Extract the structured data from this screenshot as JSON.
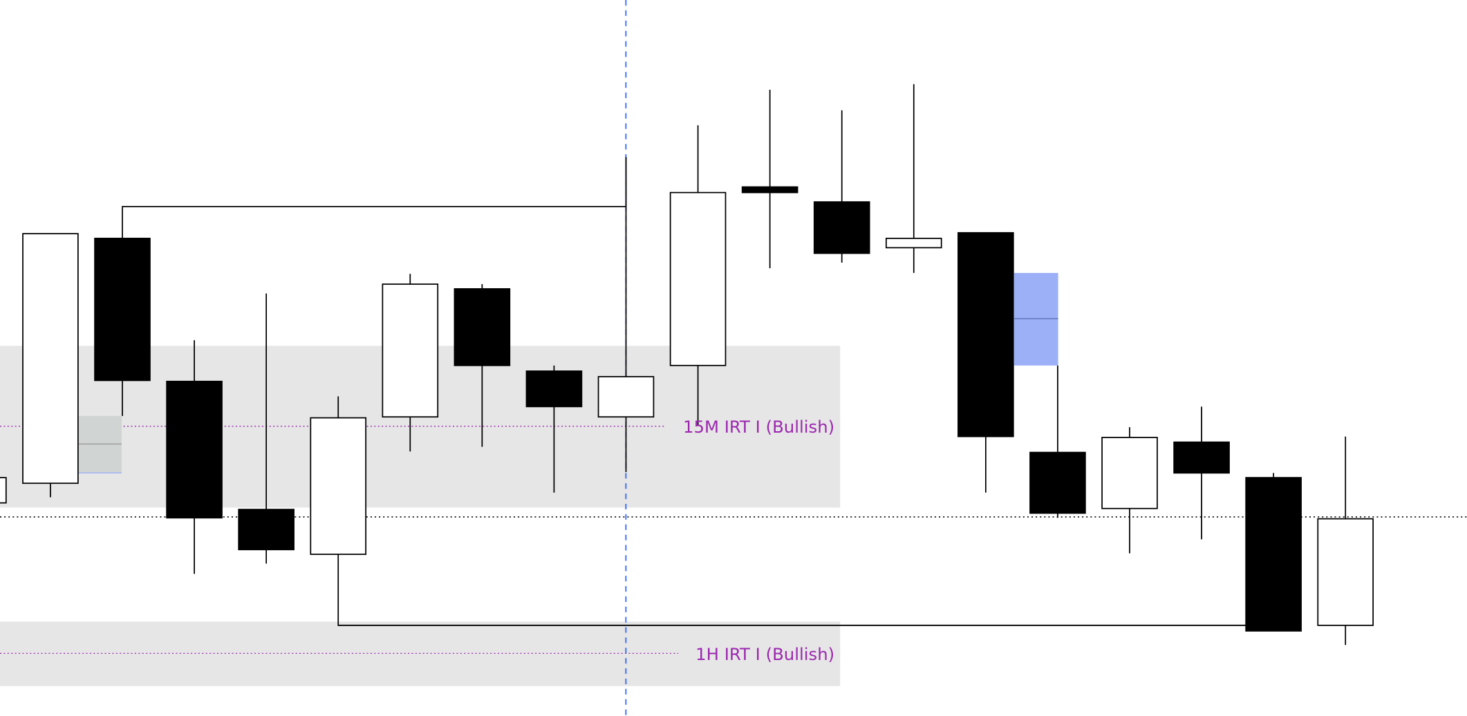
{
  "colors": {
    "zone": "#e6e6e6",
    "zone_label": "#9c27b0",
    "bull_body": "#ffffff",
    "bear_body": "#000000",
    "cursor_line": "#2962ff",
    "fvg_blue": "#9bb0f7",
    "fvg_gray": "#d0d4d2"
  },
  "chart_data": {
    "type": "candlestick",
    "title": "",
    "xlabel": "",
    "ylabel": "",
    "price_units": "relative (no axis printed)",
    "ylim": [
      0,
      800
    ],
    "grid": false,
    "candles": [
      {
        "o": 262,
        "h": 289,
        "l": 262,
        "c": 289
      },
      {
        "o": 283,
        "h": 550,
        "l": 268,
        "c": 550
      },
      {
        "o": 545,
        "h": 578,
        "l": 355,
        "c": 393
      },
      {
        "o": 392,
        "h": 436,
        "l": 186,
        "c": 246
      },
      {
        "o": 255,
        "h": 486,
        "l": 197,
        "c": 212
      },
      {
        "o": 207,
        "h": 376,
        "l": 207,
        "c": 353
      },
      {
        "o": 354,
        "h": 507,
        "l": 317,
        "c": 496
      },
      {
        "o": 491,
        "h": 496,
        "l": 322,
        "c": 409
      },
      {
        "o": 403,
        "h": 409,
        "l": 273,
        "c": 365
      },
      {
        "o": 354,
        "h": 632,
        "l": 295,
        "c": 397
      },
      {
        "o": 409,
        "h": 666,
        "l": 345,
        "c": 594
      },
      {
        "o": 600,
        "h": 704,
        "l": 513,
        "c": 594
      },
      {
        "o": 584,
        "h": 682,
        "l": 519,
        "c": 529
      },
      {
        "o": 535,
        "h": 710,
        "l": 508,
        "c": 545
      },
      {
        "o": 551,
        "h": 551,
        "l": 273,
        "c": 333
      },
      {
        "o": 316,
        "h": 409,
        "l": 246,
        "c": 251
      },
      {
        "o": 256,
        "h": 343,
        "l": 208,
        "c": 332
      },
      {
        "o": 327,
        "h": 365,
        "l": 223,
        "c": 294
      },
      {
        "o": 289,
        "h": 294,
        "l": 125,
        "c": 125
      },
      {
        "o": 131,
        "h": 333,
        "l": 110,
        "c": 245
      }
    ],
    "zones": [
      {
        "label": "15M IRT I (Bullish)",
        "top": 430,
        "bottom": 257,
        "mid": 344
      },
      {
        "label": "1H IRT I (Bullish)",
        "top": 135,
        "bottom": 66,
        "mid": 101
      }
    ],
    "levels": {
      "dotted_level": 247,
      "swing_high_line": 579,
      "swing_low_line": 131
    },
    "fvg_boxes": [
      {
        "color": "gray",
        "top": 355,
        "bottom": 294,
        "mid": 325
      },
      {
        "color": "blue",
        "top": 508,
        "bottom": 409,
        "mid": 459
      }
    ]
  }
}
